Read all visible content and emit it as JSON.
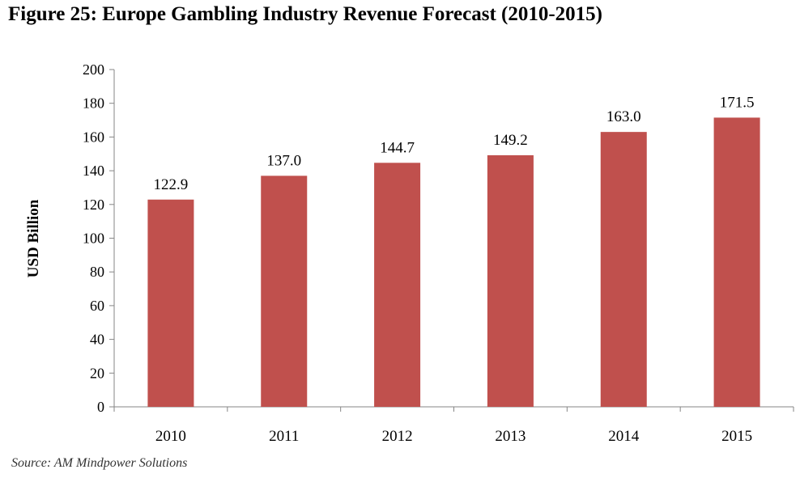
{
  "figure_title": "Figure 25: Europe Gambling Industry Revenue Forecast (2010-2015)",
  "source_note": "Source: AM Mindpower Solutions",
  "colors": {
    "bar": "#c0504d",
    "axis": "#868686",
    "text": "#000000"
  },
  "chart_data": {
    "type": "bar",
    "title": "Figure 25: Europe Gambling Industry Revenue Forecast (2010-2015)",
    "xlabel": "",
    "ylabel": "USD Billion",
    "categories": [
      "2010",
      "2011",
      "2012",
      "2013",
      "2014",
      "2015"
    ],
    "values": [
      122.9,
      137.0,
      144.7,
      149.2,
      163.0,
      171.5
    ],
    "value_labels": [
      "122.9",
      "137.0",
      "144.7",
      "149.2",
      "163.0",
      "171.5"
    ],
    "ylim": [
      0,
      200
    ],
    "yticks": [
      0,
      20,
      40,
      60,
      80,
      100,
      120,
      140,
      160,
      180,
      200
    ],
    "grid": false,
    "legend": "none"
  }
}
